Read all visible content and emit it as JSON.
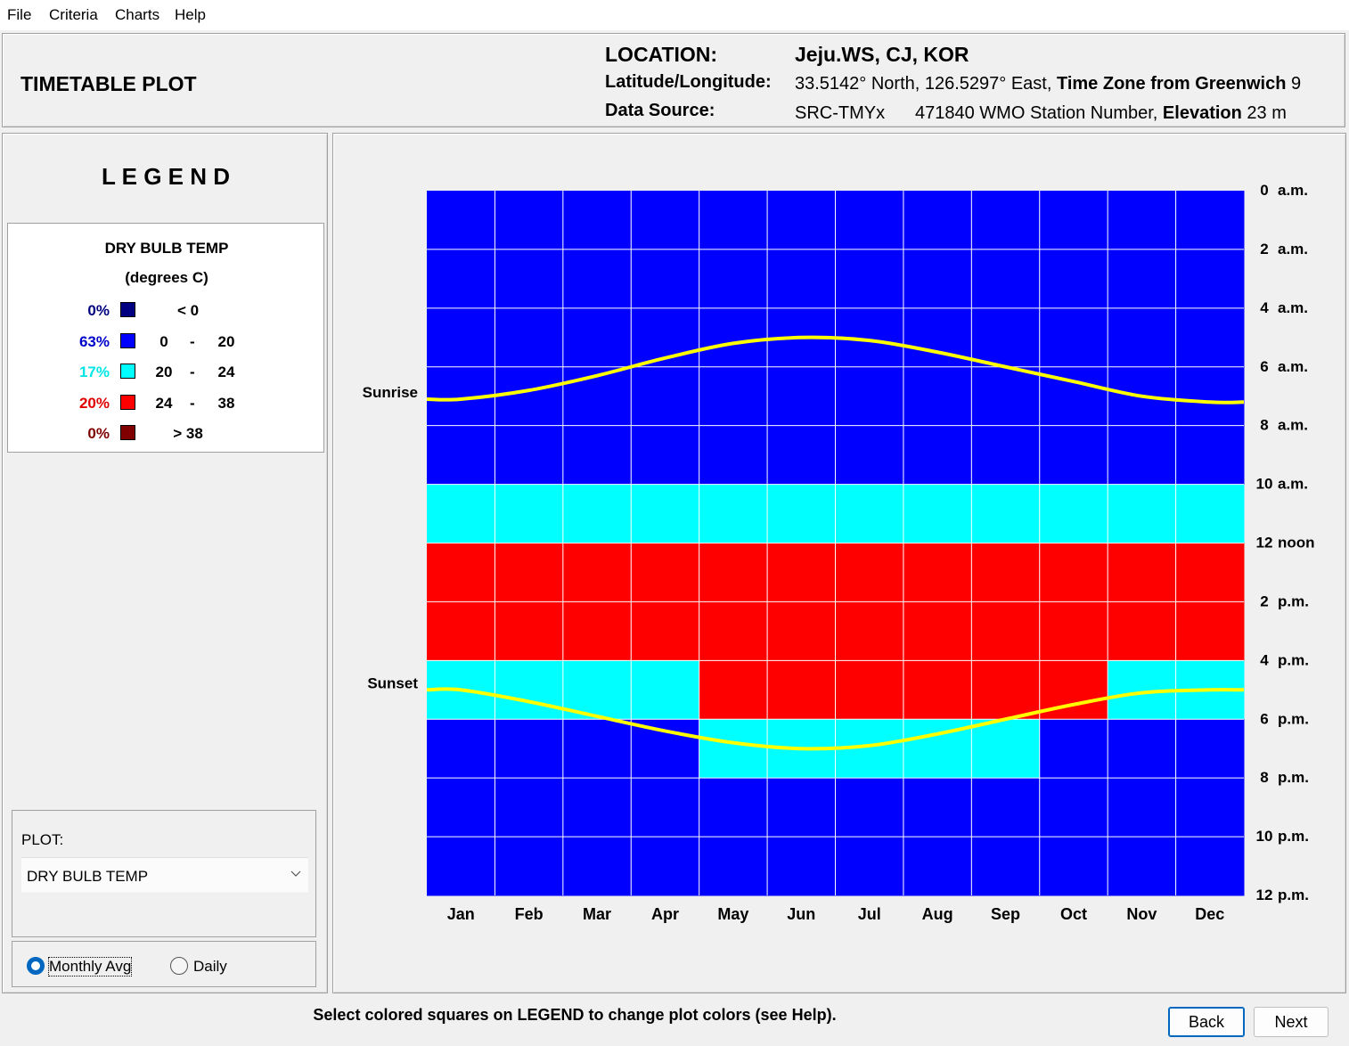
{
  "menu": [
    "File",
    "Criteria",
    "Charts",
    "Help"
  ],
  "header": {
    "title": "TIMETABLE PLOT",
    "location_label": "LOCATION:",
    "location_value": "Jeju.WS, CJ, KOR",
    "latlon_label": "Latitude/Longitude:",
    "latlon_value": "33.5142° North, 126.5297° East,",
    "tz_label": "Time Zone from Greenwich",
    "tz_value": "9",
    "source_label": "Data Source:",
    "source_value": "SRC-TMYx",
    "station_value": "471840 WMO Station Number,",
    "elev_label": "Elevation",
    "elev_value": "23 m"
  },
  "legend": {
    "heading": "L E G E N D",
    "title": "DRY BULB TEMP",
    "units": "(degrees C)",
    "items": [
      {
        "pct": "0%",
        "color": "#000080",
        "pct_color": "#000080",
        "lo": "< 0",
        "dash": "",
        "hi": ""
      },
      {
        "pct": "63%",
        "color": "#0000ff",
        "pct_color": "#0000cc",
        "lo": "0",
        "dash": "-",
        "hi": "20"
      },
      {
        "pct": "17%",
        "color": "#00ffff",
        "pct_color": "#00e5e5",
        "lo": "20",
        "dash": "-",
        "hi": "24"
      },
      {
        "pct": "20%",
        "color": "#ff0000",
        "pct_color": "#e00000",
        "lo": "24",
        "dash": "-",
        "hi": "38"
      },
      {
        "pct": "0%",
        "color": "#800000",
        "pct_color": "#800000",
        "lo": "> 38",
        "dash": "",
        "hi": ""
      }
    ]
  },
  "plot_select": {
    "label": "PLOT:",
    "value": "DRY BULB TEMP"
  },
  "radios": {
    "monthly": "Monthly Avg",
    "daily": "Daily",
    "selected": "monthly"
  },
  "footer": {
    "pre": "Select colored squares on",
    "bold": "LEGEND",
    "post": "to change plot colors (see Help)."
  },
  "buttons": {
    "back": "Back",
    "next": "Next"
  },
  "chart_data": {
    "type": "heatmap",
    "x_categories": [
      "Jan",
      "Feb",
      "Mar",
      "Apr",
      "May",
      "Jun",
      "Jul",
      "Aug",
      "Sep",
      "Oct",
      "Nov",
      "Dec"
    ],
    "y_tick_labels": [
      "0 a.m.",
      "2 a.m.",
      "4 a.m.",
      "6 a.m.",
      "8 a.m.",
      "10 a.m.",
      "12 noon",
      "2 p.m.",
      "4 p.m.",
      "6 p.m.",
      "8 p.m.",
      "10 p.m.",
      "12 p.m."
    ],
    "hour_bins": [
      0,
      2,
      4,
      6,
      8,
      10,
      12,
      14,
      16,
      18,
      20,
      22
    ],
    "cell_classes": [
      [
        1,
        1,
        1,
        1,
        1,
        1,
        1,
        1,
        1,
        1,
        1,
        1
      ],
      [
        1,
        1,
        1,
        1,
        1,
        1,
        1,
        1,
        1,
        1,
        1,
        1
      ],
      [
        1,
        1,
        1,
        1,
        1,
        1,
        1,
        1,
        1,
        1,
        1,
        1
      ],
      [
        1,
        1,
        1,
        1,
        1,
        1,
        1,
        1,
        1,
        1,
        1,
        1
      ],
      [
        1,
        1,
        1,
        1,
        1,
        1,
        1,
        1,
        1,
        1,
        1,
        1
      ],
      [
        2,
        2,
        2,
        2,
        2,
        2,
        2,
        2,
        2,
        2,
        2,
        2
      ],
      [
        3,
        3,
        3,
        3,
        3,
        3,
        3,
        3,
        3,
        3,
        3,
        3
      ],
      [
        3,
        3,
        3,
        3,
        3,
        3,
        3,
        3,
        3,
        3,
        3,
        3
      ],
      [
        2,
        2,
        2,
        2,
        3,
        3,
        3,
        3,
        3,
        3,
        2,
        2
      ],
      [
        1,
        1,
        1,
        1,
        2,
        2,
        2,
        2,
        2,
        1,
        1,
        1
      ],
      [
        1,
        1,
        1,
        1,
        1,
        1,
        1,
        1,
        1,
        1,
        1,
        1
      ],
      [
        1,
        1,
        1,
        1,
        1,
        1,
        1,
        1,
        1,
        1,
        1,
        1
      ]
    ],
    "class_colors": [
      "#000080",
      "#0000ff",
      "#00ffff",
      "#ff0000",
      "#800000"
    ],
    "sunrise_label": "Sunrise",
    "sunset_label": "Sunset",
    "sunrise_hours": [
      7.1,
      6.8,
      6.3,
      5.7,
      5.2,
      5.0,
      5.1,
      5.5,
      6.0,
      6.5,
      7.0,
      7.2
    ],
    "sunset_hours": [
      17.0,
      17.4,
      17.9,
      18.4,
      18.8,
      19.0,
      18.9,
      18.5,
      18.0,
      17.5,
      17.1,
      17.0
    ],
    "ylim": [
      0,
      24
    ]
  }
}
